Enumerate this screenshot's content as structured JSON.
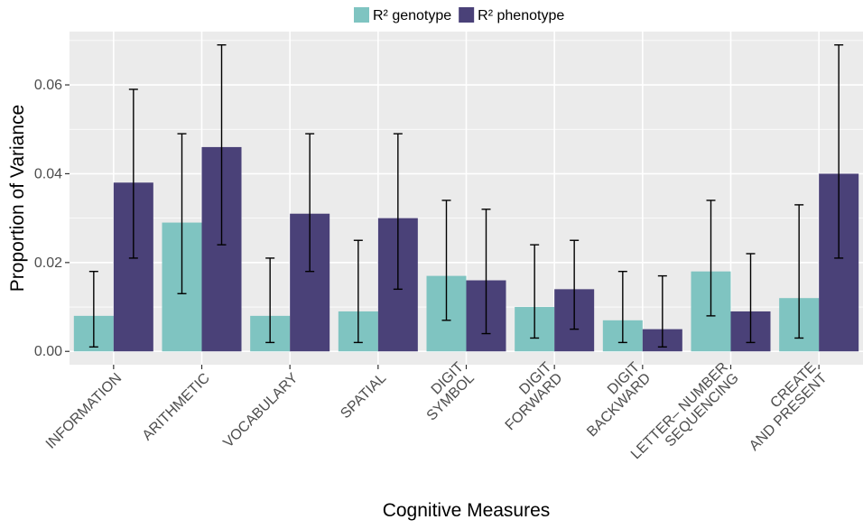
{
  "chart_data": {
    "type": "bar",
    "xlabel": "Cognitive Measures",
    "ylabel": "Proportion of Variance",
    "ylim": [
      -0.003,
      0.072
    ],
    "yticks": [
      0.0,
      0.02,
      0.04,
      0.06
    ],
    "ytick_labels": [
      "0.00",
      "0.02",
      "0.04",
      "0.06"
    ],
    "grid": true,
    "legend_position": "top",
    "categories": [
      [
        "INFORMATION"
      ],
      [
        "ARITHMETIC"
      ],
      [
        "VOCABULARY"
      ],
      [
        "SPATIAL"
      ],
      [
        "DIGIT",
        "SYMBOL"
      ],
      [
        "DIGIT",
        "FORWARD"
      ],
      [
        "DIGIT",
        "BACKWARD"
      ],
      [
        "LETTER– NUMBER",
        "SEQUENCING"
      ],
      [
        "CREATE",
        "AND PRESENT"
      ]
    ],
    "series": [
      {
        "name": "R² genotype",
        "color": "#7fc4c1",
        "values": [
          0.008,
          0.029,
          0.008,
          0.009,
          0.017,
          0.01,
          0.007,
          0.018,
          0.012
        ],
        "err_low": [
          0.001,
          0.013,
          0.002,
          0.002,
          0.007,
          0.003,
          0.002,
          0.008,
          0.003
        ],
        "err_high": [
          0.018,
          0.049,
          0.021,
          0.025,
          0.034,
          0.024,
          0.018,
          0.034,
          0.033
        ]
      },
      {
        "name": "R² phenotype",
        "color": "#4a4178",
        "values": [
          0.038,
          0.046,
          0.031,
          0.03,
          0.016,
          0.014,
          0.005,
          0.009,
          0.04
        ],
        "err_low": [
          0.021,
          0.024,
          0.018,
          0.014,
          0.004,
          0.005,
          0.001,
          0.002,
          0.021
        ],
        "err_high": [
          0.059,
          0.069,
          0.049,
          0.049,
          0.032,
          0.025,
          0.017,
          0.022,
          0.069
        ]
      }
    ]
  }
}
